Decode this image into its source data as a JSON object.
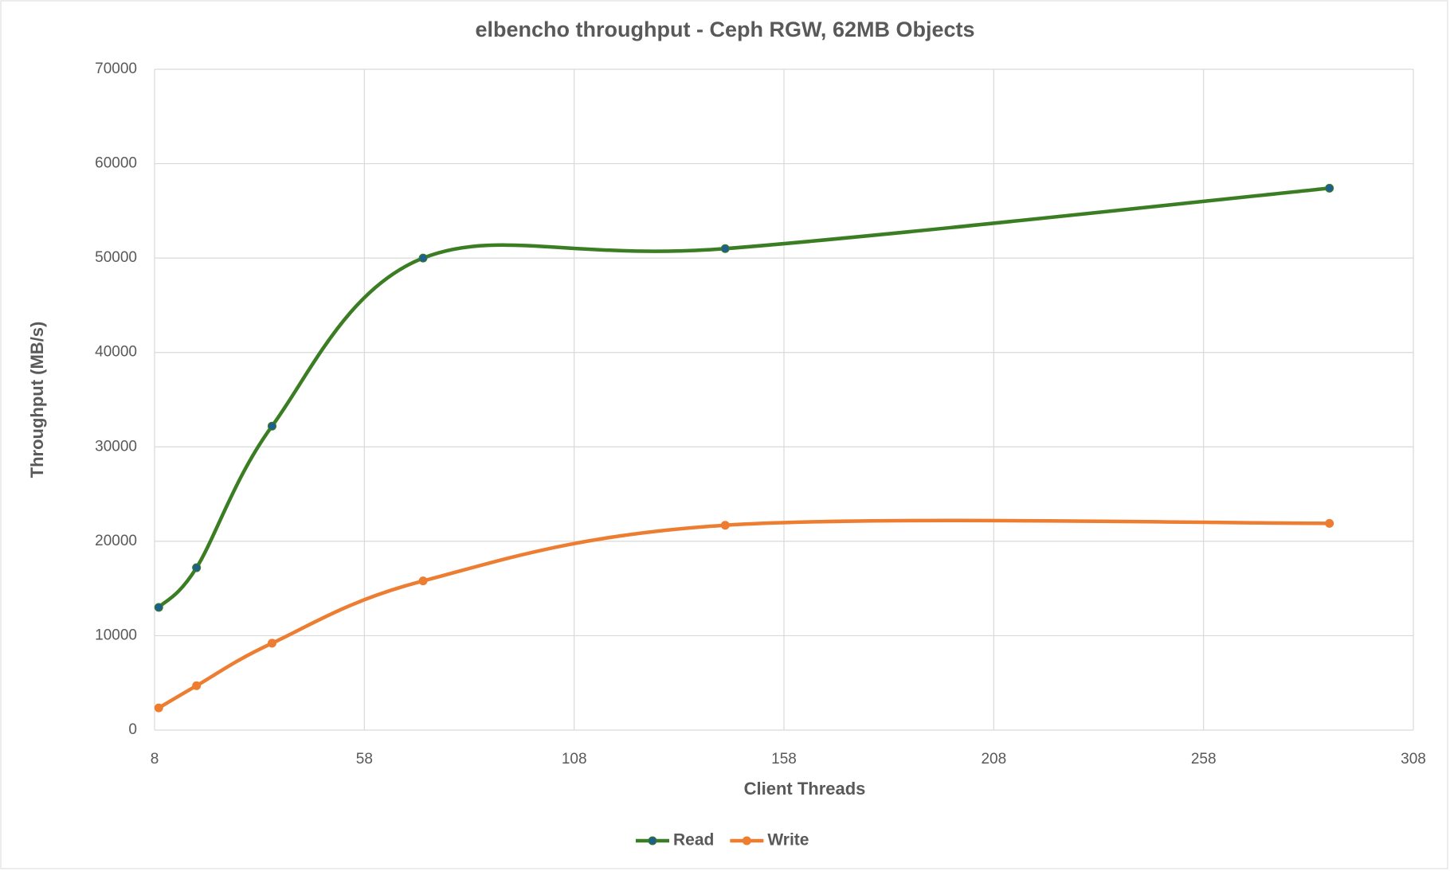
{
  "chart_data": {
    "type": "line",
    "title": "elbencho throughput - Ceph RGW, 62MB Objects",
    "x_label": "Client Threads",
    "y_label": "Throughput (MB/s)",
    "x": [
      9,
      18,
      36,
      72,
      144,
      288
    ],
    "series": [
      {
        "name": "Read",
        "color": "#3a7d22",
        "marker_color": "#1f5f8b",
        "values": [
          13000,
          17200,
          32200,
          50000,
          51000,
          57400
        ]
      },
      {
        "name": "Write",
        "color": "#ed7d31",
        "marker_color": "#ed7d31",
        "values": [
          2350,
          4700,
          9200,
          15800,
          21700,
          21900
        ]
      }
    ],
    "xlim": [
      8,
      308
    ],
    "xticks": [
      8,
      58,
      108,
      158,
      208,
      258,
      308
    ],
    "ylim": [
      0,
      70000
    ],
    "yticks": [
      0,
      10000,
      20000,
      30000,
      40000,
      50000,
      60000,
      70000
    ],
    "grid": true,
    "smooth": true,
    "legend": "bottom"
  }
}
